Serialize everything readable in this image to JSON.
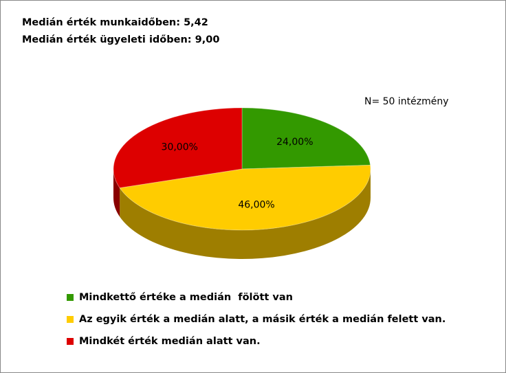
{
  "chart_data": {
    "type": "pie",
    "annotations": [
      "Medián érték munkaidőben: 5,42",
      "Medián érték ügyeleti időben: 9,00",
      "N= 50 intézmény"
    ],
    "categories": [
      "Mindkettő értéke a medián  fölött van",
      "Az egyik érték a medián alatt, a másik érték a medián felett van.",
      "Mindkét érték medián alatt van."
    ],
    "values": [
      24,
      46,
      30
    ],
    "value_labels": [
      "24,00%",
      "46,00%",
      "30,00%"
    ],
    "colors": [
      "#339900",
      "#ffcc00",
      "#dd0000"
    ]
  }
}
